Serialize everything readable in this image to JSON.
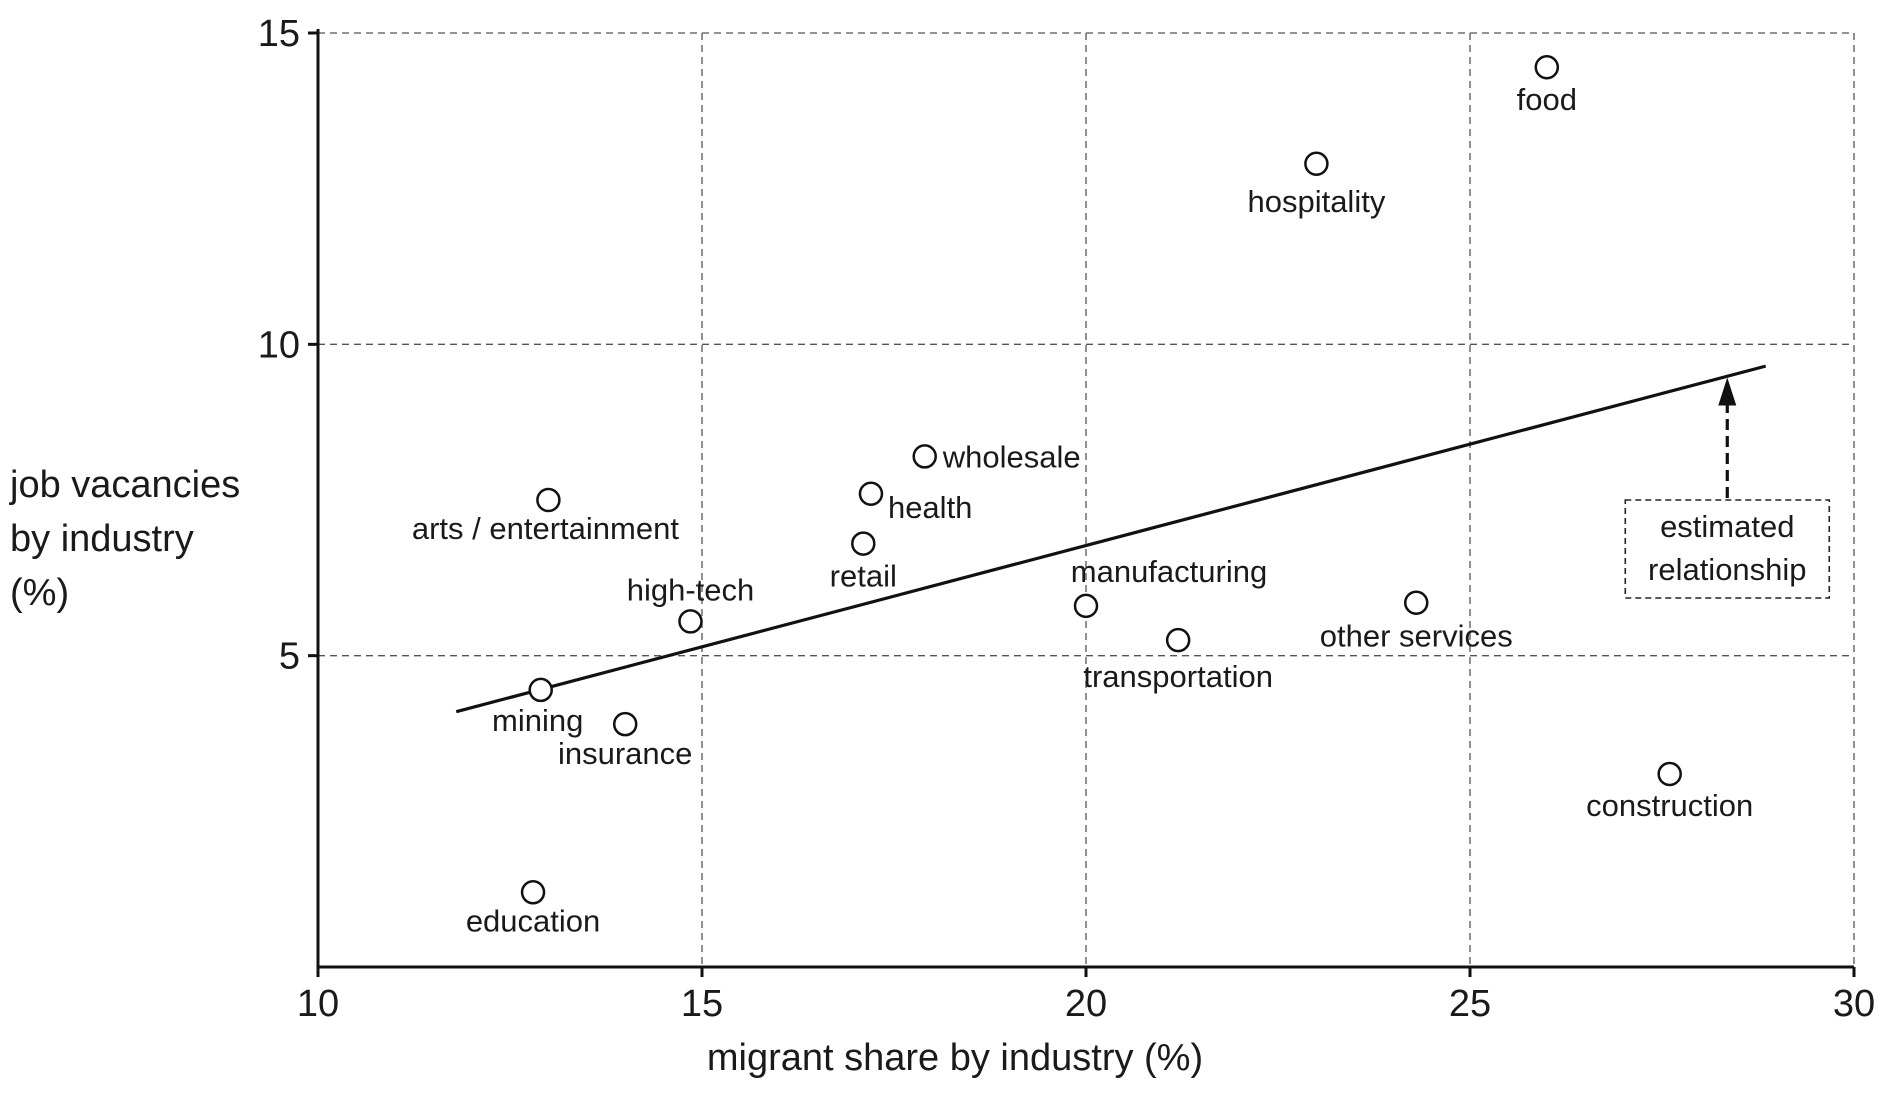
{
  "chart_data": {
    "type": "scatter",
    "xlabel": "migrant share by industry (%)",
    "ylabel": [
      "job vacancies",
      "by industry",
      "(%)"
    ],
    "xlim": [
      10,
      30
    ],
    "ylim": [
      0,
      15
    ],
    "x_ticks": [
      10,
      15,
      20,
      25,
      30
    ],
    "y_ticks": [
      5,
      10,
      15
    ],
    "grid": true,
    "points": [
      {
        "label": "food",
        "x": 26.0,
        "y": 14.45
      },
      {
        "label": "hospitality",
        "x": 23.0,
        "y": 12.9
      },
      {
        "label": "wholesale",
        "x": 17.9,
        "y": 8.2
      },
      {
        "label": "health",
        "x": 17.2,
        "y": 7.6
      },
      {
        "label": "arts / entertainment",
        "x": 13.0,
        "y": 7.5
      },
      {
        "label": "retail",
        "x": 17.1,
        "y": 6.8
      },
      {
        "label": "manufacturing",
        "x": 20.0,
        "y": 5.8
      },
      {
        "label": "other services",
        "x": 24.3,
        "y": 5.85
      },
      {
        "label": "high-tech",
        "x": 14.85,
        "y": 5.55
      },
      {
        "label": "transportation",
        "x": 21.2,
        "y": 5.25
      },
      {
        "label": "mining",
        "x": 12.9,
        "y": 4.45
      },
      {
        "label": "insurance",
        "x": 14.0,
        "y": 3.9
      },
      {
        "label": "construction",
        "x": 27.6,
        "y": 3.1
      },
      {
        "label": "education",
        "x": 12.8,
        "y": 1.2
      }
    ],
    "fit_line": {
      "x": [
        11.8,
        28.85
      ],
      "y": [
        4.1,
        9.65
      ]
    },
    "annotation": {
      "lines": [
        "estimated",
        "relationship"
      ],
      "arrow_to": {
        "x": 28.35,
        "y": 9.5
      }
    }
  }
}
